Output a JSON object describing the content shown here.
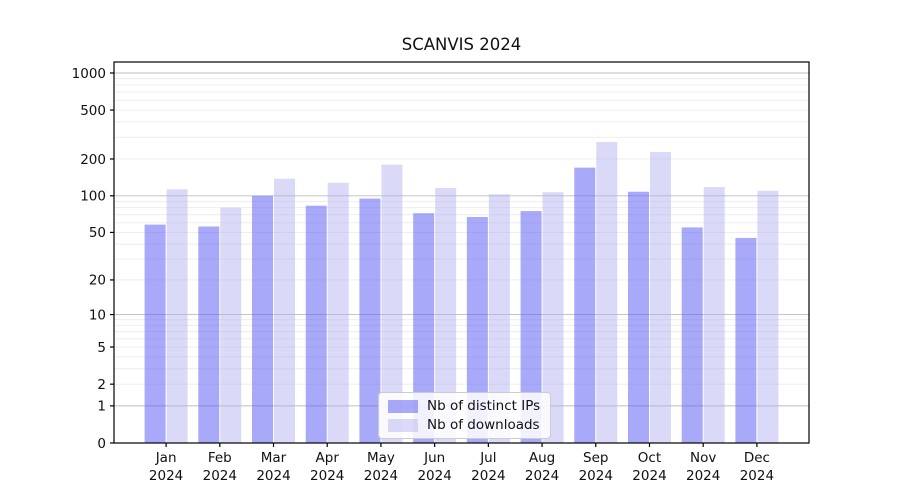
{
  "chart_data": {
    "type": "bar",
    "title": "SCANVIS 2024",
    "categories": [
      "Jan",
      "Feb",
      "Mar",
      "Apr",
      "May",
      "Jun",
      "Jul",
      "Aug",
      "Sep",
      "Oct",
      "Nov",
      "Dec"
    ],
    "category_year": "2024",
    "series": [
      {
        "name": "Nb of distinct IPs",
        "color": "#6262f6",
        "opacity": 0.55,
        "values": [
          58,
          56,
          100,
          83,
          95,
          72,
          67,
          75,
          170,
          108,
          55,
          45
        ]
      },
      {
        "name": "Nb of downloads",
        "color": "#acacf0",
        "opacity": 0.45,
        "values": [
          113,
          80,
          138,
          128,
          180,
          116,
          103,
          107,
          275,
          228,
          118,
          110
        ]
      }
    ],
    "yscale": "log1p",
    "ylim": [
      0,
      1228
    ],
    "yticks": [
      0,
      1,
      2,
      5,
      10,
      20,
      50,
      100,
      200,
      500,
      1000
    ],
    "grid": "both",
    "legend_position": "lower center",
    "colors": {
      "bar_ips_on_white": "#a8a8f8",
      "bar_downloads_on_white": "#d9d9f8",
      "major_grid": "#bdbdbd",
      "minor_grid": "#ebebeb",
      "axis": "#000000"
    }
  }
}
